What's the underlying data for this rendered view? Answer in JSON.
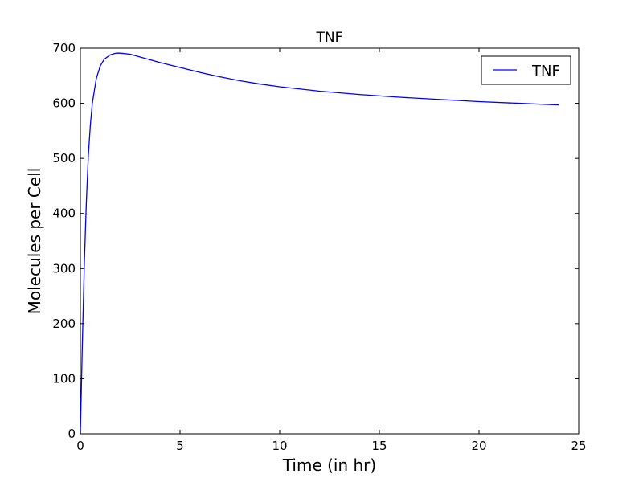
{
  "chart_data": {
    "type": "line",
    "title": "TNF",
    "xlabel": "Time (in hr)",
    "ylabel": "Molecules per Cell",
    "xlim": [
      0,
      25
    ],
    "ylim": [
      0,
      700
    ],
    "xticks": [
      0,
      5,
      10,
      15,
      20,
      25
    ],
    "yticks": [
      0,
      100,
      200,
      300,
      400,
      500,
      600,
      700
    ],
    "grid": false,
    "legend_position": "top-right",
    "series": [
      {
        "name": "TNF",
        "color": "#0000ff",
        "x": [
          0,
          0.1,
          0.2,
          0.3,
          0.4,
          0.5,
          0.6,
          0.8,
          1.0,
          1.2,
          1.5,
          1.8,
          2.0,
          2.5,
          3,
          4,
          5,
          6,
          7,
          8,
          9,
          10,
          12,
          14,
          16,
          18,
          20,
          22,
          24
        ],
        "y": [
          0,
          165,
          310,
          420,
          505,
          560,
          600,
          645,
          668,
          680,
          688,
          691,
          691,
          689,
          684,
          674,
          665,
          656,
          648,
          641,
          635,
          630,
          622,
          616,
          611,
          607,
          603,
          600,
          597
        ]
      }
    ]
  }
}
